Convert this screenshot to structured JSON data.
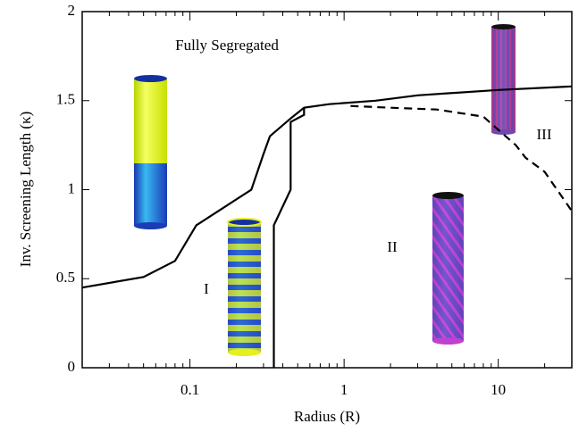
{
  "chart_data": {
    "type": "line",
    "xlabel": "Radius (R)",
    "ylabel": "Inv. Screening Length (κ)",
    "xscale": "log",
    "xlim": [
      0.02,
      30
    ],
    "ylim": [
      0,
      2
    ],
    "xticks": [
      0.1,
      1,
      10
    ],
    "yticks": [
      0,
      0.5,
      1,
      1.5,
      2
    ],
    "xminorticks": [
      0.02,
      0.03,
      0.04,
      0.05,
      0.06,
      0.07,
      0.08,
      0.09,
      0.2,
      0.3,
      0.4,
      0.5,
      0.6,
      0.7,
      0.8,
      0.9,
      2,
      3,
      4,
      5,
      6,
      7,
      8,
      9,
      20,
      30
    ],
    "annotations": [
      "Fully Segregated",
      "I",
      "II",
      "III"
    ],
    "series": [
      {
        "color": "#000000",
        "linestyle": "solid",
        "x": [
          0.02,
          0.05,
          0.08,
          0.11,
          0.25,
          0.3,
          0.33,
          0.45,
          0.55,
          0.8,
          1.6,
          3,
          10,
          30
        ],
        "values": [
          0.45,
          0.51,
          0.6,
          0.8,
          1.0,
          1.2,
          1.3,
          1.4,
          1.46,
          1.48,
          1.5,
          1.53,
          1.56,
          1.58
        ]
      },
      {
        "color": "#000000",
        "linestyle": "solid",
        "x": [
          0.35,
          0.35,
          0.45,
          0.45,
          0.55,
          0.55
        ],
        "values": [
          0,
          0.8,
          1.0,
          1.38,
          1.42,
          1.46
        ]
      },
      {
        "color": "#000000",
        "linestyle": "dashed",
        "x": [
          1.1,
          2,
          4,
          8,
          13,
          15,
          20,
          30
        ],
        "values": [
          1.47,
          1.46,
          1.45,
          1.41,
          1.25,
          1.18,
          1.1,
          0.88
        ]
      }
    ]
  }
}
